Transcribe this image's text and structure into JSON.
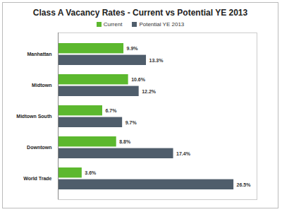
{
  "chart_data": {
    "type": "bar",
    "title": "Class A Vacancy Rates - Current vs Potential YE 2013",
    "orientation": "horizontal",
    "categories": [
      "Manhattan",
      "Midtown",
      "Midtown South",
      "Downtown",
      "World Trade"
    ],
    "series": [
      {
        "name": "Current",
        "color": "#5cb82e",
        "values": [
          9.9,
          10.6,
          6.7,
          8.8,
          3.6
        ],
        "value_labels": [
          "9.9%",
          "10.6%",
          "6.7%",
          "8.8%",
          "3.6%"
        ]
      },
      {
        "name": "Potential YE 2013",
        "color": "#4f5d6b",
        "values": [
          13.3,
          12.2,
          9.7,
          17.4,
          26.5
        ],
        "value_labels": [
          "13.3%",
          "12.2%",
          "9.7%",
          "17.4%",
          "26.5%"
        ]
      }
    ],
    "xlim": [
      0,
      30
    ],
    "data_labels": true,
    "tick_labels": "y",
    "legend": "top",
    "grid": false
  }
}
